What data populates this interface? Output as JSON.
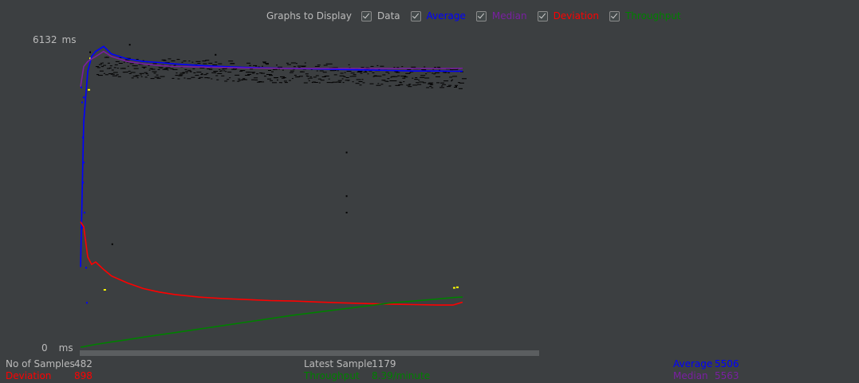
{
  "toolbar": {
    "label": "Graphs to Display",
    "options": [
      {
        "label": "Data",
        "checked": true,
        "color": "#bbbbbb"
      },
      {
        "label": "Average",
        "checked": true,
        "color": "#0000ff"
      },
      {
        "label": "Median",
        "checked": true,
        "color": "#7a1fa2"
      },
      {
        "label": "Deviation",
        "checked": true,
        "color": "#ff0000"
      },
      {
        "label": "Throughput",
        "checked": true,
        "color": "#008000"
      }
    ]
  },
  "graph": {
    "y_max_value": "6132",
    "y_min_value": "0",
    "y_unit": "ms"
  },
  "stats": {
    "samples_label": "No of Samples",
    "samples_value": "482",
    "deviation_label": "Deviation",
    "deviation_value": "898",
    "latest_label": "Latest Sample",
    "latest_value": "1179",
    "throughput_label": "Throughput",
    "throughput_value": "8.39/minute",
    "average_label": "Average",
    "average_value": "5506",
    "median_label": "Median",
    "median_value": "5563"
  },
  "colors": {
    "background": "#3c3f41",
    "data": "#000000",
    "average": "#0000ff",
    "median": "#7a1fa2",
    "deviation": "#ff0000",
    "throughput": "#008000",
    "highlight": "#ffff00"
  },
  "chart_data": {
    "type": "line",
    "title": "",
    "xlabel": "",
    "ylabel": "",
    "ylim": [
      0,
      6132
    ],
    "x": [
      1,
      5,
      10,
      15,
      20,
      30,
      40,
      60,
      80,
      100,
      120,
      150,
      180,
      210,
      240,
      270,
      300,
      330,
      360,
      390,
      420,
      450,
      470,
      482
    ],
    "series": [
      {
        "name": "Average",
        "values": [
          1600,
          4500,
          5500,
          5800,
          5900,
          6000,
          5850,
          5750,
          5700,
          5680,
          5650,
          5620,
          5600,
          5580,
          5570,
          5560,
          5550,
          5540,
          5530,
          5520,
          5510,
          5510,
          5505,
          5506
        ]
      },
      {
        "name": "Median",
        "values": [
          5200,
          5600,
          5700,
          5750,
          5800,
          5900,
          5800,
          5700,
          5650,
          5620,
          5600,
          5590,
          5580,
          5570,
          5565,
          5560,
          5560,
          5560,
          5560,
          5560,
          5560,
          5560,
          5560,
          5563
        ]
      },
      {
        "name": "Deviation",
        "values": [
          2500,
          2400,
          1800,
          1650,
          1700,
          1550,
          1420,
          1280,
          1170,
          1100,
          1050,
          1000,
          970,
          950,
          930,
          920,
          900,
          885,
          870,
          860,
          850,
          840,
          840,
          898
        ]
      },
      {
        "name": "Throughput",
        "values": [
          0,
          10,
          25,
          40,
          55,
          80,
          105,
          150,
          200,
          245,
          290,
          360,
          430,
          500,
          570,
          640,
          700,
          760,
          820,
          880,
          920,
          960,
          990,
          1000
        ]
      }
    ]
  }
}
